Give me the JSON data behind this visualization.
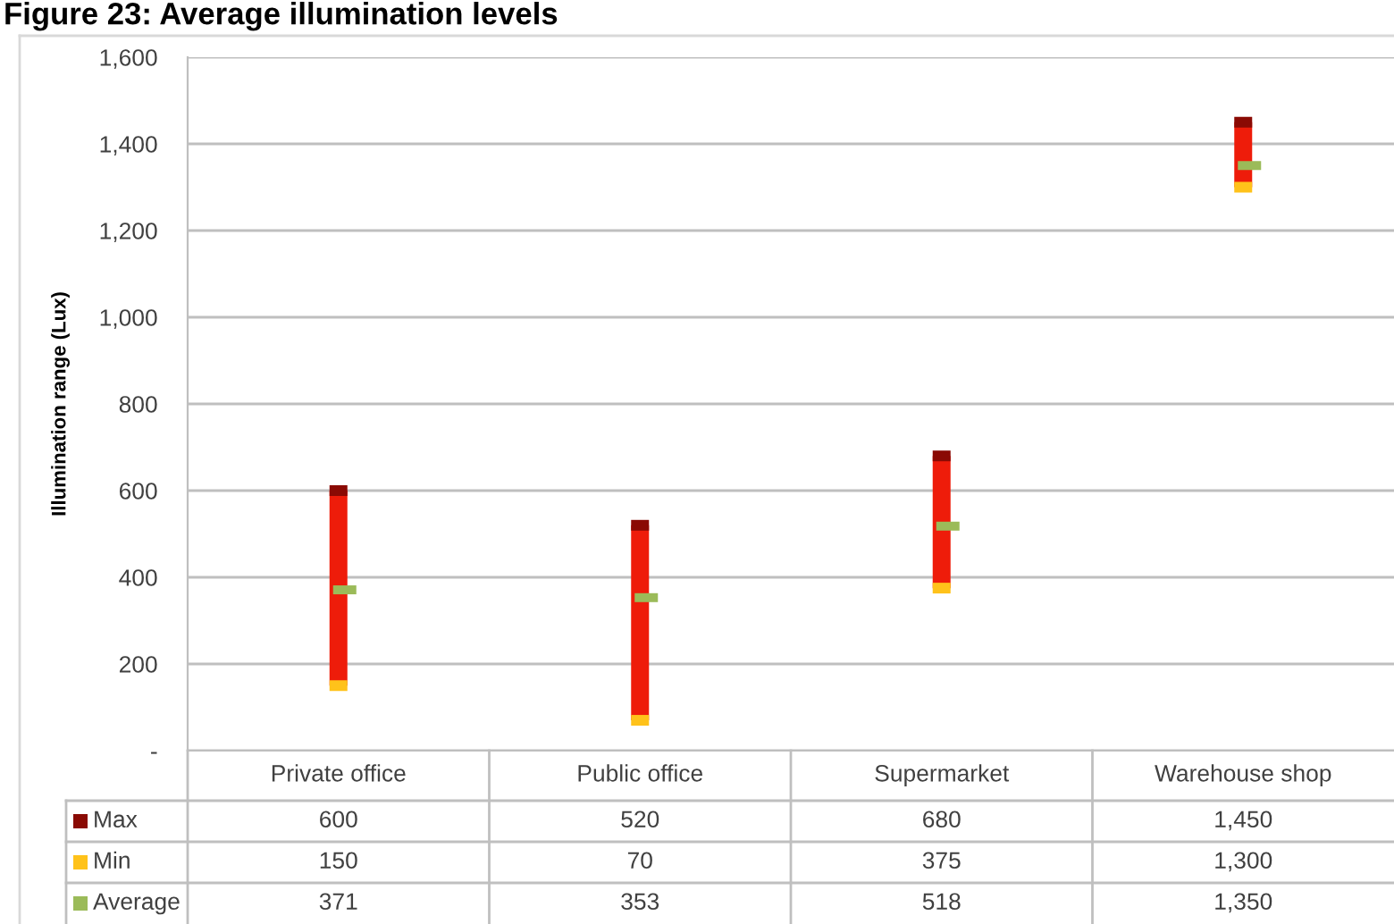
{
  "chart_data": {
    "type": "bar",
    "title": "Figure 23: Average illumination levels",
    "ylabel": "Illumination range (Lux)",
    "categories": [
      "Private office",
      "Public office",
      "Supermarket",
      "Warehouse shop"
    ],
    "series": [
      {
        "base": [
          150,
          70,
          375,
          1300
        ],
        "values": [
          450,
          450,
          305,
          150
        ],
        "color": "#ee1c0a"
      },
      {
        "name": "Max",
        "type": "scatter",
        "marker": "square",
        "color": "#8a0a04",
        "values": [
          600,
          520,
          680,
          1450
        ],
        "value_labels": [
          "600",
          "520",
          "680",
          "1,450"
        ]
      },
      {
        "name": "Min",
        "type": "scatter",
        "marker": "square",
        "color": "#ffc21a",
        "values": [
          150,
          70,
          375,
          1300
        ],
        "value_labels": [
          "150",
          "70",
          "375",
          "1,300"
        ]
      },
      {
        "name": "Average",
        "type": "scatter",
        "marker": "square",
        "color": "#9bbb59",
        "values": [
          371,
          353,
          518,
          1350
        ],
        "value_labels": [
          "371",
          "353",
          "518",
          "1,350"
        ]
      }
    ],
    "ylim": [
      0,
      1600
    ],
    "yticks": [
      {
        "value": 0,
        "label": "-"
      },
      200,
      400,
      600,
      800,
      {
        "value": 1000,
        "label": "1,000"
      },
      {
        "value": 1200,
        "label": "1,200"
      },
      {
        "value": 1400,
        "label": "1,400"
      },
      {
        "value": 1600,
        "label": "1,600"
      }
    ],
    "grid": "y",
    "legend": "bottom left"
  }
}
